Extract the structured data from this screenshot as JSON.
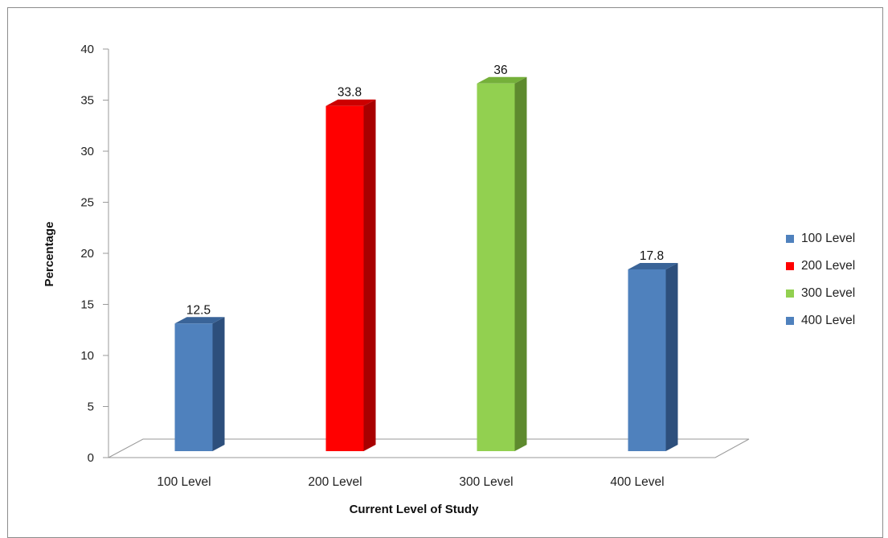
{
  "chart_data": {
    "type": "bar",
    "categories": [
      "100 Level",
      "200 Level",
      "300 Level",
      "400 Level"
    ],
    "values": [
      12.5,
      33.8,
      36,
      17.8
    ],
    "data_labels": [
      "12.5",
      "33.8",
      "36",
      "17.8"
    ],
    "title": "",
    "xlabel": "Current Level of Study",
    "ylabel": "Percentage",
    "ylim": [
      0,
      40
    ],
    "yticks": [
      0,
      5,
      10,
      15,
      20,
      25,
      30,
      35,
      40
    ],
    "grid": false,
    "legend_position": "right",
    "style": "3d-column",
    "colors": [
      "#4f81bd",
      "#ff0000",
      "#92d050",
      "#4f81bd"
    ],
    "side_colors": [
      "#2d4f7c",
      "#a80000",
      "#5e8a2e",
      "#2d4f7c"
    ],
    "top_colors": [
      "#3a6498",
      "#cc0000",
      "#75b03a",
      "#3a6498"
    ]
  },
  "legend": {
    "items": [
      {
        "label": "100 Level",
        "color": "#4f81bd"
      },
      {
        "label": "200 Level",
        "color": "#ff0000"
      },
      {
        "label": "300 Level",
        "color": "#92d050"
      },
      {
        "label": "400 Level",
        "color": "#4f81bd"
      }
    ]
  }
}
